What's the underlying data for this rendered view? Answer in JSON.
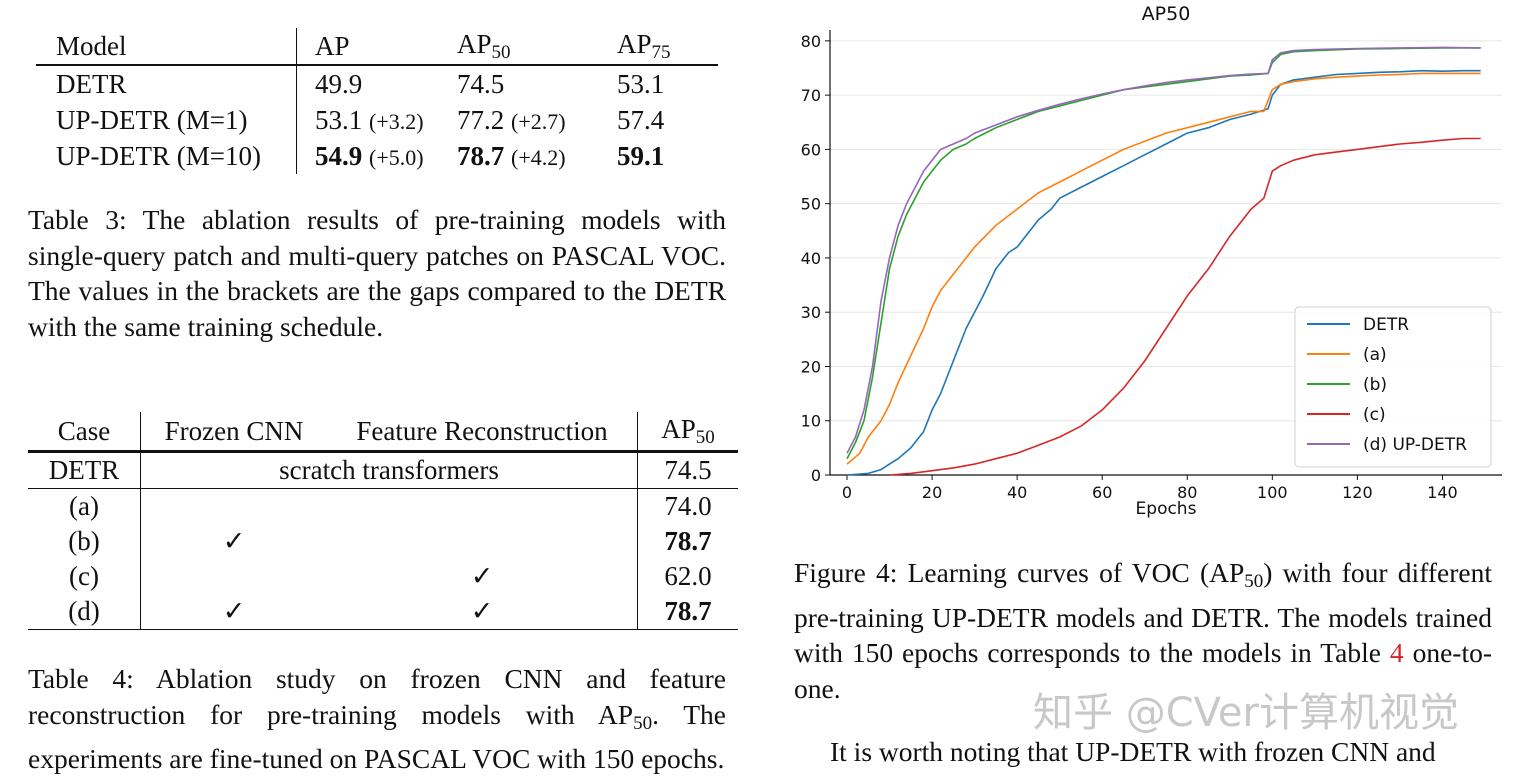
{
  "table3": {
    "header": {
      "model": "Model",
      "ap": "AP",
      "ap50": "AP",
      "ap50_sub": "50",
      "ap75": "AP",
      "ap75_sub": "75"
    },
    "rows": [
      {
        "model": "DETR",
        "ap": "49.9",
        "ap_gap": "",
        "ap50": "74.5",
        "ap50_gap": "",
        "ap75": "53.1"
      },
      {
        "model": "UP-DETR (M=1)",
        "ap": "53.1",
        "ap_gap": "(+3.2)",
        "ap50": "77.2",
        "ap50_gap": "(+2.7)",
        "ap75": "57.4"
      },
      {
        "model": "UP-DETR (M=10)",
        "ap": "54.9",
        "ap_gap": "(+5.0)",
        "ap50": "78.7",
        "ap50_gap": "(+4.2)",
        "ap75": "59.1"
      }
    ],
    "caption": "Table 3: The ablation results of pre-training models with single-query patch and multi-query patches on PASCAL VOC. The values in the brackets are the gaps compared to the DETR with the same training schedule."
  },
  "table4": {
    "header": {
      "case": "Case",
      "frozen": "Frozen CNN",
      "feature": "Feature Reconstruction",
      "ap50": "AP",
      "ap50_sub": "50"
    },
    "detr_row": {
      "case": "DETR",
      "span": "scratch transformers",
      "ap50": "74.5"
    },
    "rows": [
      {
        "case": "(a)",
        "frozen": "",
        "feature": "",
        "ap50": "74.0"
      },
      {
        "case": "(b)",
        "frozen": "✓",
        "feature": "",
        "ap50": "78.7"
      },
      {
        "case": "(c)",
        "frozen": "",
        "feature": "✓",
        "ap50": "62.0"
      },
      {
        "case": "(d)",
        "frozen": "✓",
        "feature": "✓",
        "ap50": "78.7"
      }
    ],
    "caption_a": "Table 4: Ablation study on frozen CNN and feature reconstruction for pre-training models with AP",
    "caption_sub": "50",
    "caption_b": ". The experiments are fine-tuned on PASCAL VOC with 150 epochs."
  },
  "figure4": {
    "caption_a": "Figure 4: Learning curves of VOC (AP",
    "caption_sub": "50",
    "caption_b": ") with four different pre-training UP-DETR models and DETR. The models trained with 150 epochs corresponds to the models in Table ",
    "caption_ref": "4",
    "caption_c": " one-to-one."
  },
  "body_text": "It is worth noting that UP-DETR with frozen CNN and",
  "watermark": "知乎 @CVer计算机视觉",
  "chart_data": {
    "type": "line",
    "title": "AP50",
    "xlabel": "Epochs",
    "ylabel": "",
    "xlim": [
      -4,
      154
    ],
    "ylim": [
      0,
      82
    ],
    "xticks": [
      0,
      20,
      40,
      60,
      80,
      100,
      120,
      140
    ],
    "yticks": [
      0,
      10,
      20,
      30,
      40,
      50,
      60,
      70,
      80
    ],
    "grid": "horizontal",
    "legend_position": "lower-right",
    "series": [
      {
        "name": "DETR",
        "color": "#1f77b4",
        "points": [
          [
            0,
            0
          ],
          [
            5,
            0.3
          ],
          [
            8,
            1
          ],
          [
            10,
            2
          ],
          [
            12,
            3
          ],
          [
            15,
            5
          ],
          [
            18,
            8
          ],
          [
            20,
            12
          ],
          [
            22,
            15
          ],
          [
            25,
            21
          ],
          [
            28,
            27
          ],
          [
            30,
            30
          ],
          [
            32,
            33
          ],
          [
            35,
            38
          ],
          [
            38,
            41
          ],
          [
            40,
            42
          ],
          [
            42,
            44
          ],
          [
            45,
            47
          ],
          [
            48,
            49
          ],
          [
            50,
            51
          ],
          [
            55,
            53
          ],
          [
            60,
            55
          ],
          [
            65,
            57
          ],
          [
            70,
            59
          ],
          [
            75,
            61
          ],
          [
            80,
            63
          ],
          [
            85,
            64
          ],
          [
            90,
            65.5
          ],
          [
            95,
            66.5
          ],
          [
            99,
            67.5
          ],
          [
            100,
            70
          ],
          [
            102,
            72
          ],
          [
            105,
            72.8
          ],
          [
            110,
            73.3
          ],
          [
            115,
            73.8
          ],
          [
            120,
            74
          ],
          [
            125,
            74.2
          ],
          [
            130,
            74.3
          ],
          [
            135,
            74.5
          ],
          [
            140,
            74.4
          ],
          [
            145,
            74.5
          ],
          [
            149,
            74.5
          ]
        ]
      },
      {
        "name": "(a)",
        "color": "#ff7f0e",
        "points": [
          [
            0,
            2
          ],
          [
            3,
            4
          ],
          [
            5,
            7
          ],
          [
            8,
            10
          ],
          [
            10,
            13
          ],
          [
            12,
            17
          ],
          [
            15,
            22
          ],
          [
            18,
            27
          ],
          [
            20,
            31
          ],
          [
            22,
            34
          ],
          [
            25,
            37
          ],
          [
            28,
            40
          ],
          [
            30,
            42
          ],
          [
            35,
            46
          ],
          [
            40,
            49
          ],
          [
            45,
            52
          ],
          [
            50,
            54
          ],
          [
            55,
            56
          ],
          [
            60,
            58
          ],
          [
            65,
            60
          ],
          [
            70,
            61.5
          ],
          [
            75,
            63
          ],
          [
            80,
            64
          ],
          [
            85,
            65
          ],
          [
            90,
            66
          ],
          [
            95,
            67
          ],
          [
            98,
            67
          ],
          [
            100,
            71
          ],
          [
            102,
            72
          ],
          [
            105,
            72.5
          ],
          [
            110,
            73
          ],
          [
            115,
            73.3
          ],
          [
            120,
            73.5
          ],
          [
            125,
            73.7
          ],
          [
            130,
            73.8
          ],
          [
            135,
            74
          ],
          [
            140,
            74
          ],
          [
            145,
            74
          ],
          [
            149,
            74
          ]
        ]
      },
      {
        "name": "(b)",
        "color": "#2ca02c",
        "points": [
          [
            0,
            3
          ],
          [
            2,
            6
          ],
          [
            4,
            10
          ],
          [
            6,
            18
          ],
          [
            8,
            28
          ],
          [
            10,
            38
          ],
          [
            12,
            44
          ],
          [
            14,
            48
          ],
          [
            16,
            51
          ],
          [
            18,
            54
          ],
          [
            20,
            56
          ],
          [
            22,
            58
          ],
          [
            25,
            60
          ],
          [
            28,
            61
          ],
          [
            30,
            62
          ],
          [
            35,
            64
          ],
          [
            40,
            65.5
          ],
          [
            45,
            67
          ],
          [
            50,
            68
          ],
          [
            55,
            69
          ],
          [
            60,
            70
          ],
          [
            65,
            71
          ],
          [
            70,
            71.5
          ],
          [
            75,
            72
          ],
          [
            80,
            72.5
          ],
          [
            85,
            73
          ],
          [
            90,
            73.5
          ],
          [
            95,
            73.7
          ],
          [
            99,
            74
          ],
          [
            100,
            76
          ],
          [
            102,
            77.5
          ],
          [
            105,
            78
          ],
          [
            110,
            78.2
          ],
          [
            120,
            78.5
          ],
          [
            130,
            78.6
          ],
          [
            140,
            78.7
          ],
          [
            149,
            78.7
          ]
        ]
      },
      {
        "name": "(c)",
        "color": "#d62728",
        "points": [
          [
            10,
            0
          ],
          [
            15,
            0.3
          ],
          [
            20,
            0.8
          ],
          [
            25,
            1.3
          ],
          [
            30,
            2
          ],
          [
            35,
            3
          ],
          [
            40,
            4
          ],
          [
            45,
            5.5
          ],
          [
            50,
            7
          ],
          [
            55,
            9
          ],
          [
            60,
            12
          ],
          [
            65,
            16
          ],
          [
            70,
            21
          ],
          [
            75,
            27
          ],
          [
            80,
            33
          ],
          [
            85,
            38
          ],
          [
            90,
            44
          ],
          [
            95,
            49
          ],
          [
            98,
            51
          ],
          [
            100,
            56
          ],
          [
            102,
            57
          ],
          [
            105,
            58
          ],
          [
            110,
            59
          ],
          [
            115,
            59.5
          ],
          [
            120,
            60
          ],
          [
            125,
            60.5
          ],
          [
            130,
            61
          ],
          [
            135,
            61.3
          ],
          [
            140,
            61.7
          ],
          [
            145,
            62
          ],
          [
            149,
            62
          ]
        ]
      },
      {
        "name": "(d) UP-DETR",
        "color": "#9467bd",
        "points": [
          [
            0,
            4
          ],
          [
            2,
            7
          ],
          [
            4,
            12
          ],
          [
            6,
            20
          ],
          [
            8,
            32
          ],
          [
            10,
            40
          ],
          [
            12,
            46
          ],
          [
            14,
            50
          ],
          [
            16,
            53
          ],
          [
            18,
            56
          ],
          [
            20,
            58
          ],
          [
            22,
            60
          ],
          [
            25,
            61
          ],
          [
            28,
            62
          ],
          [
            30,
            63
          ],
          [
            35,
            64.5
          ],
          [
            40,
            66
          ],
          [
            45,
            67.2
          ],
          [
            50,
            68.3
          ],
          [
            55,
            69.3
          ],
          [
            60,
            70.2
          ],
          [
            65,
            71
          ],
          [
            70,
            71.7
          ],
          [
            75,
            72.3
          ],
          [
            80,
            72.8
          ],
          [
            85,
            73.2
          ],
          [
            90,
            73.6
          ],
          [
            95,
            73.9
          ],
          [
            99,
            74
          ],
          [
            100,
            76.5
          ],
          [
            102,
            77.8
          ],
          [
            105,
            78.2
          ],
          [
            110,
            78.4
          ],
          [
            120,
            78.6
          ],
          [
            130,
            78.7
          ],
          [
            140,
            78.8
          ],
          [
            149,
            78.7
          ]
        ]
      }
    ]
  }
}
